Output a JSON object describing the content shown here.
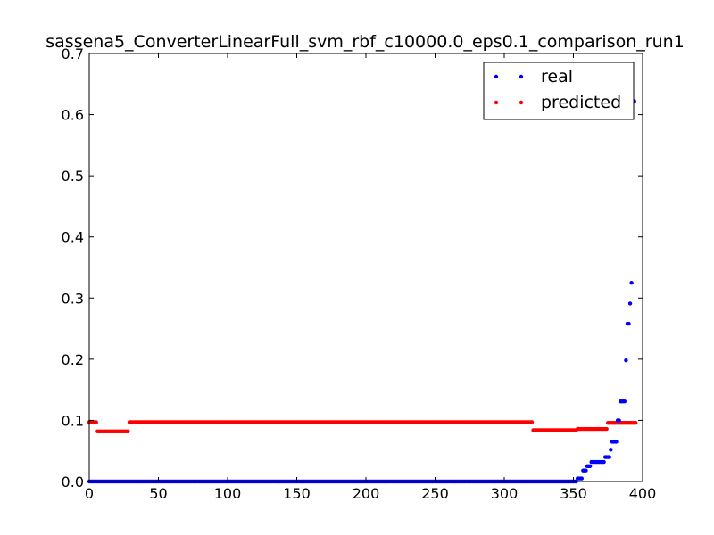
{
  "chart_data": {
    "type": "scatter",
    "title": "sassena5_ConverterLinearFull_svm_rbf_c10000.0_eps0.1_comparison_run1",
    "xlabel": "",
    "ylabel": "",
    "xlim": [
      0,
      400
    ],
    "ylim": [
      0.0,
      0.7
    ],
    "x_ticks": [
      0,
      50,
      100,
      150,
      200,
      250,
      300,
      350,
      400
    ],
    "y_ticks": [
      0.0,
      0.1,
      0.2,
      0.3,
      0.4,
      0.5,
      0.6,
      0.7
    ],
    "x_tick_labels": [
      "0",
      "50",
      "100",
      "150",
      "200",
      "250",
      "300",
      "350",
      "400"
    ],
    "y_tick_labels": [
      "0.0",
      "0.1",
      "0.2",
      "0.3",
      "0.4",
      "0.5",
      "0.6",
      "0.7"
    ],
    "grid": false,
    "legend_position": "top-right",
    "n_points": 396,
    "series": [
      {
        "name": "real",
        "color": "#0000ff",
        "segments": [
          {
            "x_start": 0,
            "x_end": 352,
            "value": 0.0
          },
          {
            "x_start": 353,
            "x_end": 356,
            "value": 0.005
          },
          {
            "x_start": 357,
            "x_end": 359,
            "value": 0.018
          },
          {
            "x_start": 360,
            "x_end": 362,
            "value": 0.025
          },
          {
            "x_start": 363,
            "x_end": 372,
            "value": 0.032
          },
          {
            "x_start": 373,
            "x_end": 376,
            "value": 0.04
          },
          {
            "x_start": 377,
            "x_end": 377,
            "value": 0.052
          },
          {
            "x_start": 378,
            "x_end": 381,
            "value": 0.065
          },
          {
            "x_start": 382,
            "x_end": 383,
            "value": 0.1
          },
          {
            "x_start": 384,
            "x_end": 387,
            "value": 0.131
          }
        ],
        "points": [
          [
            388,
            0.198
          ],
          [
            389,
            0.258
          ],
          [
            390,
            0.258
          ],
          [
            391,
            0.291
          ],
          [
            392,
            0.325
          ],
          [
            394,
            0.622
          ]
        ]
      },
      {
        "name": "predicted",
        "color": "#ff0000",
        "segments": [
          {
            "x_start": 0,
            "x_end": 5,
            "value": 0.097
          },
          {
            "x_start": 6,
            "x_end": 28,
            "value": 0.082
          },
          {
            "x_start": 29,
            "x_end": 320,
            "value": 0.097
          },
          {
            "x_start": 321,
            "x_end": 352,
            "value": 0.084
          },
          {
            "x_start": 353,
            "x_end": 374,
            "value": 0.086
          },
          {
            "x_start": 375,
            "x_end": 395,
            "value": 0.096
          }
        ]
      }
    ]
  }
}
